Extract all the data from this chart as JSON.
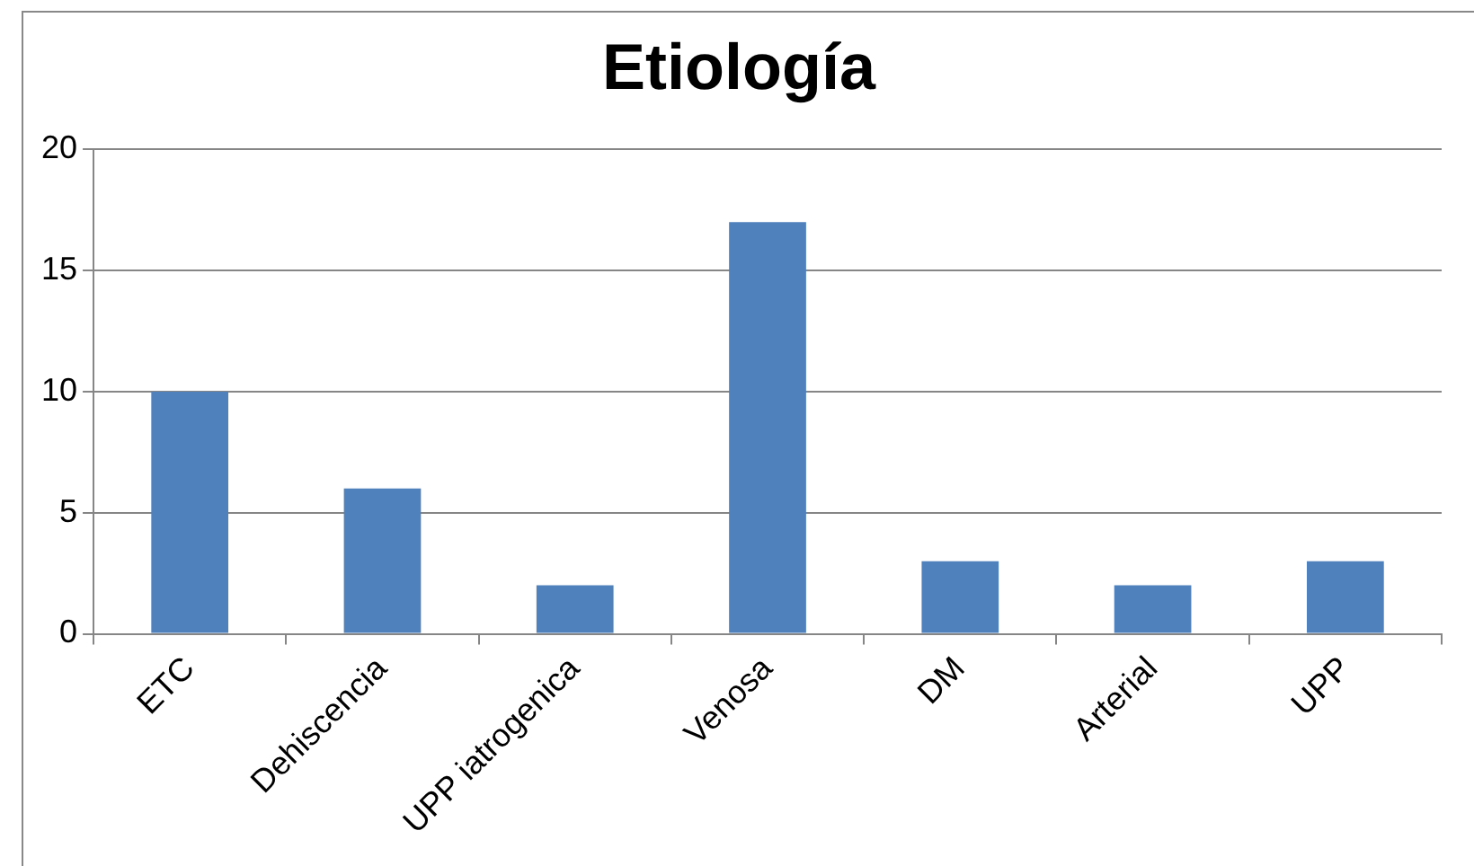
{
  "chart_data": {
    "type": "bar",
    "title": "Etiología",
    "categories": [
      "ETC",
      "Dehiscencia",
      "UPP iatrogenica",
      "Venosa",
      "DM",
      "Arterial",
      "UPP"
    ],
    "values": [
      10,
      6,
      2,
      17,
      3,
      2,
      3
    ],
    "color": "#4f81bd",
    "ylim": [
      0,
      20
    ],
    "yticks": [
      0,
      5,
      10,
      15,
      20
    ],
    "grid": "y",
    "legend": false
  }
}
